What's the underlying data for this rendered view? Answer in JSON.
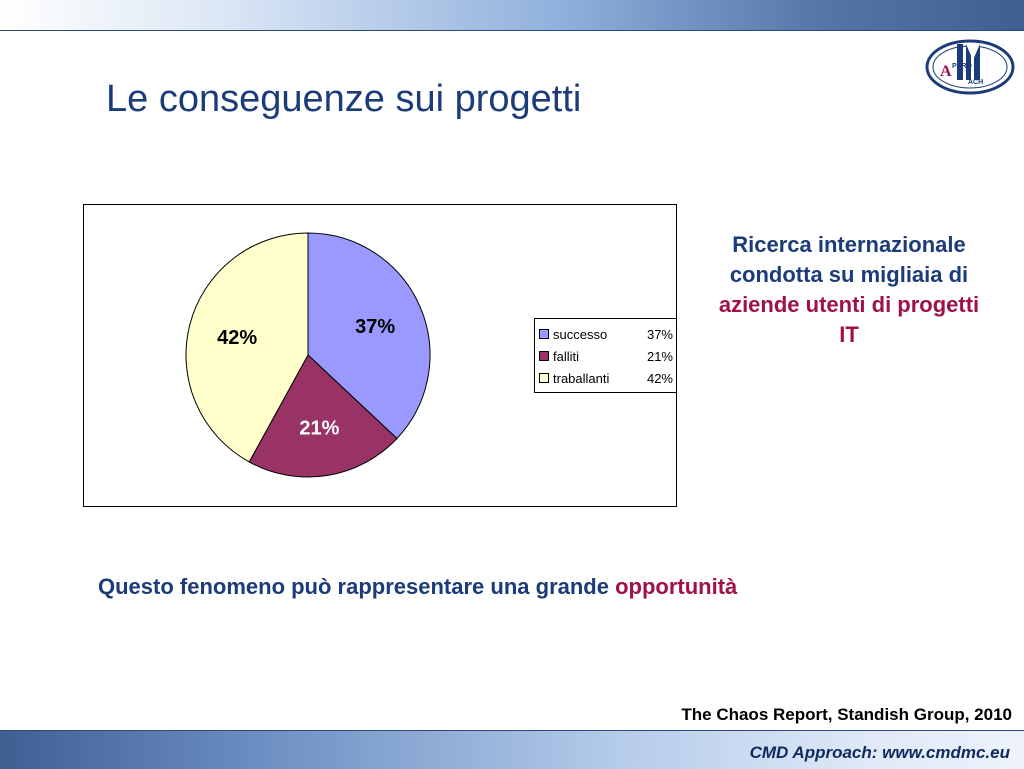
{
  "slide": {
    "title": "Le conseguenze sui progetti",
    "side_text": {
      "plain": "Ricerca internazionale condotta su migliaia di ",
      "highlight": "aziende utenti di progetti IT"
    },
    "statement": {
      "plain": "Questo fenomeno può rappresentare una grande ",
      "highlight": "opportunità"
    },
    "source": "The Chaos Report, Standish Group, 2010",
    "footer": "CMD Approach: www.cmdmc.eu",
    "logo": {
      "letters_top": "IMI",
      "letters_small": "APPRO ACH"
    }
  },
  "colors": {
    "title": "#1b3c78",
    "accent": "#a0114a"
  },
  "chart_data": {
    "type": "pie",
    "title": "",
    "categories": [
      "successo",
      "falliti",
      "traballanti"
    ],
    "values": [
      37,
      21,
      42
    ],
    "labels": [
      "37%",
      "21%",
      "42%"
    ],
    "colors": [
      "#9999ff",
      "#993366",
      "#ffffcc"
    ],
    "legend_position": "right",
    "legend_values": [
      "37%",
      "21%",
      "42%"
    ]
  }
}
